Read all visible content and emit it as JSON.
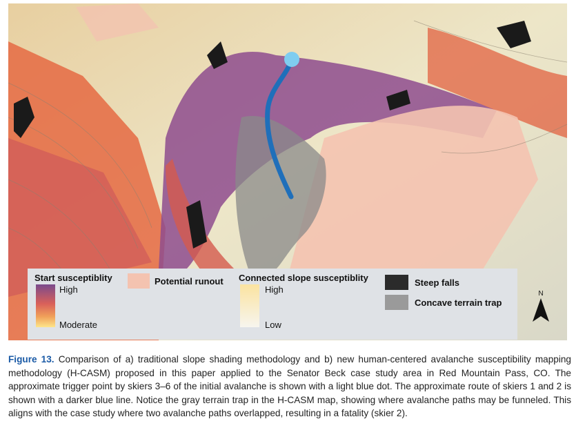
{
  "figure": {
    "legend": {
      "start_susceptibility": {
        "title": "Start susceptiblity",
        "high": "High",
        "low": "Moderate"
      },
      "potential_runout": "Potential runout",
      "connected_slope": {
        "title": "Connected slope susceptiblity",
        "high": "High",
        "low": "Low"
      },
      "steep_falls": "Steep falls",
      "terrain_trap": "Concave terrain trap",
      "north": "N"
    },
    "caption": {
      "label": "Figure 13.",
      "text": "Comparison of a) traditional slope shading methodology and b) new human-centered avalanche susceptibility mapping methodology (H-CASM) proposed in this paper applied to the Senator Beck case study area in Red Mountain Pass, CO. The approximate trigger point by skiers 3–6 of the initial avalanche is shown with a light blue dot. The approximate route of skiers 1 and 2 is shown with a darker blue line. Notice the gray terrain trap in the H-CASM map, showing where avalanche paths may be funneled. This aligns with the case study where two avalanche paths overlapped, resulting in a fatality (skier 2)."
    }
  }
}
